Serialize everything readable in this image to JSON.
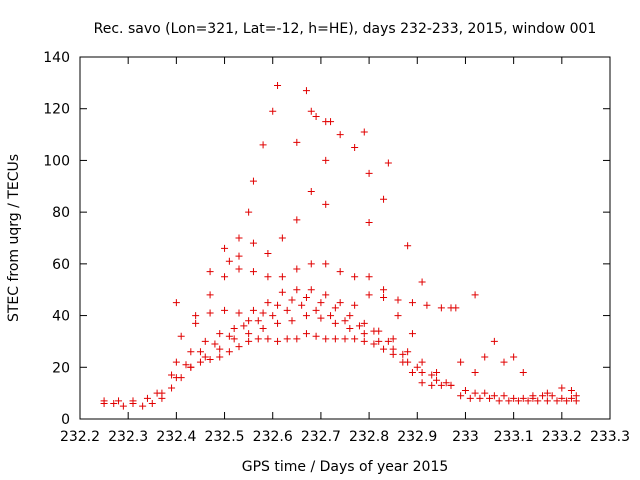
{
  "chart_data": {
    "type": "scatter",
    "title": "Rec. savo (Lon=321, Lat=-12, h=HE), days 232-233, 2015, window 001",
    "xlabel": "GPS time / Days of year 2015",
    "ylabel": "STEC from uqrg / TECUs",
    "xlim": [
      232.2,
      233.3
    ],
    "ylim": [
      0,
      140
    ],
    "xticks": [
      "232.2",
      "232.3",
      "232.4",
      "232.5",
      "232.6",
      "232.7",
      "232.8",
      "232.9",
      "233",
      "233.1",
      "233.2",
      "233.3"
    ],
    "yticks": [
      "0",
      "20",
      "40",
      "60",
      "80",
      "100",
      "120",
      "140"
    ],
    "grid": false,
    "marker": "plus",
    "color": "#e00000",
    "series": [
      {
        "x": [
          232.25,
          232.27,
          232.29,
          232.31,
          232.33,
          232.35,
          232.37,
          232.39,
          232.41,
          232.43,
          232.45,
          232.47,
          232.49,
          232.51,
          232.53,
          232.55,
          232.57,
          232.59,
          232.61,
          232.63,
          232.65,
          232.67,
          232.69,
          232.71,
          232.73,
          232.75,
          232.77,
          232.79,
          232.81,
          232.83,
          232.85,
          232.87,
          232.89,
          232.91,
          232.93,
          232.95,
          232.97
        ],
        "y": [
          6,
          6,
          5,
          6,
          5,
          6,
          8,
          12,
          16,
          20,
          22,
          23,
          24,
          26,
          28,
          30,
          31,
          31,
          30,
          31,
          31,
          33,
          32,
          31,
          31,
          31,
          31,
          30,
          29,
          27,
          25,
          22,
          18,
          14,
          13,
          13,
          13
        ]
      },
      {
        "x": [
          232.25,
          232.28,
          232.31,
          232.34,
          232.37,
          232.4,
          232.43,
          232.46,
          232.49,
          232.52,
          232.55,
          232.58,
          232.61,
          232.64,
          232.67,
          232.7,
          232.73,
          232.76,
          232.79,
          232.82,
          232.85,
          232.88,
          232.91,
          232.94,
          232.97
        ],
        "y": [
          7,
          7,
          7,
          8,
          10,
          16,
          20,
          24,
          27,
          31,
          33,
          35,
          37,
          38,
          40,
          39,
          37,
          35,
          33,
          30,
          27,
          22,
          18,
          15,
          13
        ]
      },
      {
        "x": [
          232.36,
          232.39,
          232.42,
          232.45,
          232.48,
          232.51,
          232.54,
          232.57,
          232.6,
          232.63,
          232.66,
          232.69,
          232.72,
          232.75,
          232.78,
          232.81,
          232.84,
          232.87,
          232.9,
          232.93,
          232.96
        ],
        "y": [
          10,
          17,
          21,
          26,
          29,
          32,
          36,
          38,
          40,
          42,
          44,
          42,
          40,
          38,
          36,
          34,
          30,
          25,
          20,
          17,
          14
        ]
      },
      {
        "x": [
          232.4,
          232.43,
          232.46,
          232.49,
          232.52,
          232.55,
          232.58,
          232.61,
          232.64,
          232.67,
          232.7,
          232.73,
          232.76,
          232.79,
          232.82,
          232.85,
          232.88,
          232.91,
          232.94
        ],
        "y": [
          22,
          26,
          30,
          33,
          35,
          38,
          41,
          44,
          46,
          47,
          45,
          43,
          40,
          37,
          34,
          31,
          26,
          22,
          18
        ]
      },
      {
        "x": [
          232.41,
          232.44,
          232.47,
          232.5,
          232.53,
          232.56,
          232.59,
          232.62,
          232.65,
          232.68,
          232.71,
          232.74,
          232.77,
          232.8,
          232.83,
          232.86,
          232.89,
          232.92,
          232.95,
          232.98
        ],
        "y": [
          32,
          37,
          41,
          42,
          41,
          42,
          45,
          49,
          50,
          50,
          48,
          45,
          44,
          48,
          47,
          46,
          45,
          44,
          43,
          43
        ]
      },
      {
        "x": [
          232.44,
          232.47,
          232.5,
          232.53,
          232.56,
          232.59,
          232.62,
          232.65,
          232.68,
          232.71,
          232.74,
          232.77,
          232.8,
          232.83,
          232.86,
          232.89
        ],
        "y": [
          40,
          48,
          55,
          58,
          57,
          55,
          55,
          58,
          60,
          60,
          57,
          55,
          55,
          50,
          40,
          33
        ]
      },
      {
        "x": [
          232.47,
          232.5,
          232.53,
          232.56,
          232.59,
          232.62,
          232.65,
          232.68,
          232.71,
          232.74,
          232.77,
          232.8,
          232.83
        ],
        "y": [
          57,
          66,
          70,
          68,
          64,
          70,
          77,
          88,
          100,
          110,
          105,
          95,
          85
        ]
      },
      {
        "x": [
          232.56,
          232.58,
          232.6,
          232.61,
          232.65,
          232.67,
          232.68,
          232.69,
          232.71,
          232.72,
          232.79,
          232.84,
          232.88,
          232.91
        ],
        "y": [
          92,
          106,
          119,
          129,
          107,
          127,
          119,
          117,
          115,
          115,
          111,
          99,
          67,
          53
        ]
      },
      {
        "x": [
          232.99,
          233.01,
          233.03,
          233.05,
          233.07,
          233.09,
          233.11,
          233.13,
          233.15,
          233.17,
          233.19,
          233.21,
          233.23
        ],
        "y": [
          9,
          8,
          8,
          8,
          7,
          7,
          7,
          7,
          7,
          7,
          7,
          7,
          7
        ]
      },
      {
        "x": [
          233.0,
          233.02,
          233.04,
          233.06,
          233.08,
          233.1,
          233.12,
          233.14,
          233.16,
          233.18,
          233.2,
          233.22,
          233.23
        ],
        "y": [
          11,
          10,
          10,
          9,
          9,
          8,
          8,
          8,
          9,
          9,
          8,
          8,
          9
        ]
      },
      {
        "x": [
          232.99,
          233.02,
          233.04,
          233.06,
          233.08,
          233.1,
          233.12,
          233.14,
          233.17,
          233.2,
          233.22
        ],
        "y": [
          22,
          18,
          24,
          30,
          22,
          24,
          18,
          9,
          10,
          12,
          11
        ]
      },
      {
        "x": [
          232.4,
          232.51,
          232.53,
          232.55,
          232.71,
          232.8,
          233.02,
          232.97
        ],
        "y": [
          45,
          61,
          63,
          80,
          83,
          76,
          48,
          43
        ]
      }
    ]
  }
}
